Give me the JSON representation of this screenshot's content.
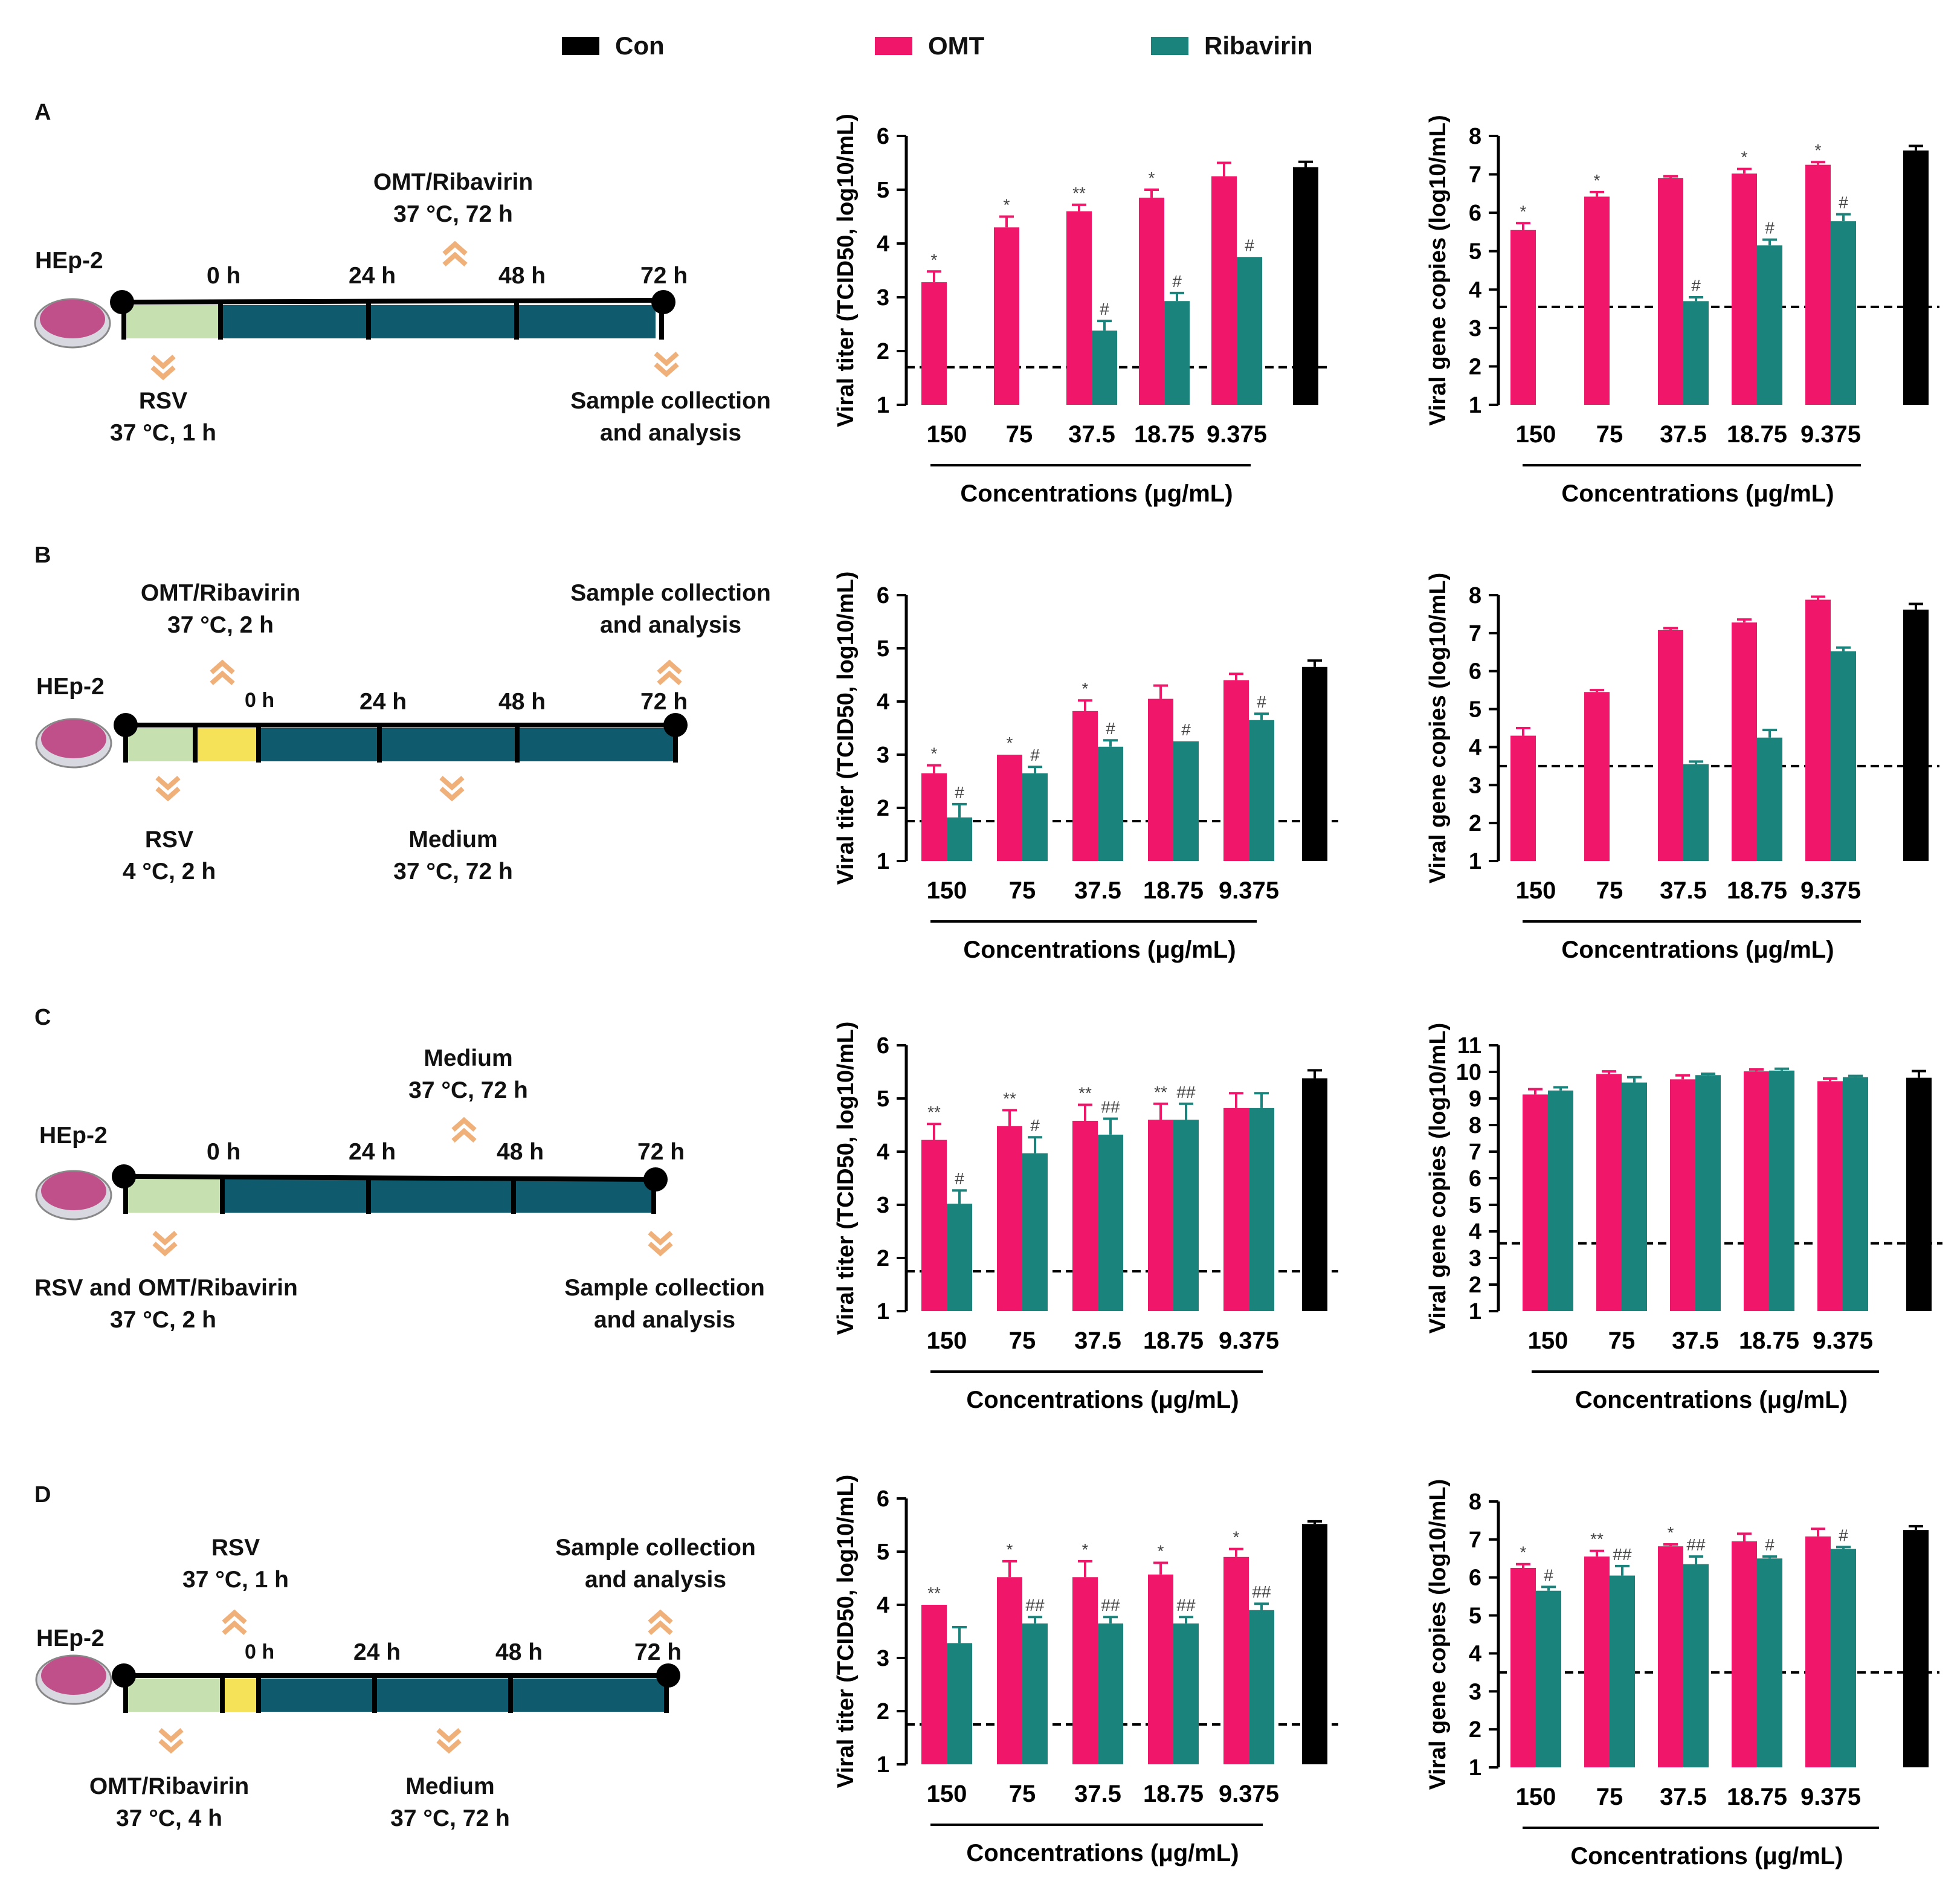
{
  "legend": {
    "items": [
      {
        "label": "Con",
        "color": "#000000"
      },
      {
        "label": "OMT",
        "color": "#f0166a"
      },
      {
        "label": "Ribavirin",
        "color": "#1a847c"
      }
    ]
  },
  "colors": {
    "con": "#000000",
    "omt": "#f0166a",
    "ribavirin": "#1a847c",
    "timeline": "#0f5b6d",
    "pre": "#c6e0b0",
    "yellow": "#f6e258",
    "arrow": "#f0b07a"
  },
  "panels": [
    {
      "letter": "A",
      "scheme": {
        "cell": "HEp-2",
        "hours": [
          "0 h",
          "24 h",
          "48 h",
          "72 h"
        ],
        "top_label_1": "OMT/Ribavirin",
        "top_label_2": "37 °C, 72 h",
        "bottom_left_1": "RSV",
        "bottom_left_2": "37 °C, 1 h",
        "bottom_right_1": "Sample collection",
        "bottom_right_2": "and analysis"
      }
    },
    {
      "letter": "B",
      "scheme": {
        "cell": "HEp-2",
        "hours": [
          "0 h",
          "24 h",
          "48 h",
          "72 h"
        ],
        "top_left_1": "OMT/Ribavirin",
        "top_left_2": "37 °C, 2 h",
        "top_right_1": "Sample collection",
        "top_right_2": "and analysis",
        "bottom_left_1": "RSV",
        "bottom_left_2": "4 °C, 2 h",
        "bottom_mid_1": "Medium",
        "bottom_mid_2": "37 °C, 72 h"
      }
    },
    {
      "letter": "C",
      "scheme": {
        "cell": "HEp-2",
        "hours": [
          "0 h",
          "24 h",
          "48 h",
          "72 h"
        ],
        "top_label_1": "Medium",
        "top_label_2": "37 °C, 72 h",
        "bottom_left_1": "RSV and OMT/Ribavirin",
        "bottom_left_2": "37 °C, 2 h",
        "bottom_right_1": "Sample collection",
        "bottom_right_2": "and analysis"
      }
    },
    {
      "letter": "D",
      "scheme": {
        "cell": "HEp-2",
        "hours": [
          "0 h",
          "24 h",
          "48 h",
          "72 h"
        ],
        "top_left_1": "RSV",
        "top_left_2": "37 °C, 1 h",
        "top_right_1": "Sample collection",
        "top_right_2": "and analysis",
        "bottom_left_1": "OMT/Ribavirin",
        "bottom_left_2": "37 °C, 4 h",
        "bottom_mid_1": "Medium",
        "bottom_mid_2": "37 °C, 72 h"
      }
    }
  ],
  "chart_data": [
    {
      "panel": "A",
      "type": "bar",
      "title": "",
      "ylabel": "Viral titer (TCID50, log10/mL)",
      "xlabel": "Concentrations (μg/mL)",
      "ylim": [
        1,
        6
      ],
      "yticks": [
        1,
        2,
        3,
        4,
        5,
        6
      ],
      "categories": [
        "150",
        "75",
        "37.5",
        "18.75",
        "9.375"
      ],
      "detection_limit": 1.7,
      "series": [
        {
          "name": "OMT",
          "values": [
            3.28,
            4.3,
            4.6,
            4.85,
            5.25
          ],
          "errors": [
            0.2,
            0.2,
            0.12,
            0.15,
            0.25
          ],
          "marks": [
            "*",
            "*",
            "**",
            "*",
            ""
          ]
        },
        {
          "name": "Ribavirin",
          "values": [
            null,
            null,
            2.38,
            2.93,
            3.75
          ],
          "errors": [
            0,
            0,
            0.18,
            0.15,
            0
          ],
          "marks": [
            "",
            "",
            "#",
            "#",
            "#"
          ]
        }
      ],
      "control": {
        "name": "Con",
        "value": 5.42,
        "error": 0.1
      }
    },
    {
      "panel": "A",
      "type": "bar",
      "title": "",
      "ylabel": "Viral gene copies (log10/mL)",
      "xlabel": "Concentrations (μg/mL)",
      "ylim": [
        1,
        8
      ],
      "yticks": [
        1,
        2,
        3,
        4,
        5,
        6,
        7,
        8
      ],
      "categories": [
        "150",
        "75",
        "37.5",
        "18.75",
        "9.375"
      ],
      "detection_limit": 3.55,
      "series": [
        {
          "name": "OMT",
          "values": [
            5.55,
            6.42,
            6.9,
            7.02,
            7.25
          ],
          "errors": [
            0.18,
            0.12,
            0.05,
            0.12,
            0.07
          ],
          "marks": [
            "*",
            "*",
            "",
            "*",
            "*"
          ]
        },
        {
          "name": "Ribavirin",
          "values": [
            null,
            null,
            3.7,
            5.15,
            5.78
          ],
          "errors": [
            0,
            0,
            0.1,
            0.15,
            0.18
          ],
          "marks": [
            "",
            "",
            "#",
            "#",
            "#"
          ]
        }
      ],
      "control": {
        "name": "Con",
        "value": 7.62,
        "error": 0.12
      }
    },
    {
      "panel": "B",
      "type": "bar",
      "title": "",
      "ylabel": "Viral titer (TCID50, log10/mL)",
      "xlabel": "Concentrations (μg/mL)",
      "ylim": [
        1,
        6
      ],
      "yticks": [
        1,
        2,
        3,
        4,
        5,
        6
      ],
      "categories": [
        "150",
        "75",
        "37.5",
        "18.75",
        "9.375"
      ],
      "detection_limit": 1.75,
      "series": [
        {
          "name": "OMT",
          "values": [
            2.65,
            3.0,
            3.82,
            4.05,
            4.4
          ],
          "errors": [
            0.15,
            0.0,
            0.2,
            0.25,
            0.12
          ],
          "marks": [
            "*",
            "*",
            "*",
            "",
            ""
          ]
        },
        {
          "name": "Ribavirin",
          "values": [
            1.82,
            2.65,
            3.15,
            3.25,
            3.65
          ],
          "errors": [
            0.25,
            0.12,
            0.12,
            0.0,
            0.12
          ],
          "marks": [
            "#",
            "#",
            "#",
            "#",
            "#"
          ]
        }
      ],
      "control": {
        "name": "Con",
        "value": 4.65,
        "error": 0.12
      }
    },
    {
      "panel": "B",
      "type": "bar",
      "title": "",
      "ylabel": "Viral gene copies (log10/mL)",
      "xlabel": "Concentrations (μg/mL)",
      "ylim": [
        1,
        8
      ],
      "yticks": [
        1,
        2,
        3,
        4,
        5,
        6,
        7,
        8
      ],
      "categories": [
        "150",
        "75",
        "37.5",
        "18.75",
        "9.375"
      ],
      "detection_limit": 3.5,
      "series": [
        {
          "name": "OMT",
          "values": [
            4.3,
            5.45,
            7.08,
            7.28,
            7.88
          ],
          "errors": [
            0.2,
            0.05,
            0.05,
            0.08,
            0.08
          ],
          "marks": [
            "",
            "",
            "",
            "",
            ""
          ]
        },
        {
          "name": "Ribavirin",
          "values": [
            null,
            null,
            3.55,
            4.25,
            6.52
          ],
          "errors": [
            0,
            0,
            0.07,
            0.2,
            0.1
          ],
          "marks": [
            "",
            "",
            "",
            "",
            ""
          ]
        }
      ],
      "control": {
        "name": "Con",
        "value": 7.62,
        "error": 0.15
      }
    },
    {
      "panel": "C",
      "type": "bar",
      "title": "",
      "ylabel": "Viral titer (TCID50, log10/mL)",
      "xlabel": "Concentrations (μg/mL)",
      "ylim": [
        1,
        6
      ],
      "yticks": [
        1,
        2,
        3,
        4,
        5,
        6
      ],
      "categories": [
        "150",
        "75",
        "37.5",
        "18.75",
        "9.375"
      ],
      "detection_limit": 1.75,
      "series": [
        {
          "name": "OMT",
          "values": [
            4.22,
            4.48,
            4.58,
            4.6,
            4.82
          ],
          "errors": [
            0.3,
            0.3,
            0.3,
            0.3,
            0.28
          ],
          "marks": [
            "**",
            "**",
            "**",
            "**",
            ""
          ]
        },
        {
          "name": "Ribavirin",
          "values": [
            3.02,
            3.97,
            4.32,
            4.6,
            4.82
          ],
          "errors": [
            0.25,
            0.3,
            0.3,
            0.3,
            0.28
          ],
          "marks": [
            "#",
            "#",
            "##",
            "##",
            ""
          ]
        }
      ],
      "control": {
        "name": "Con",
        "value": 5.38,
        "error": 0.15
      }
    },
    {
      "panel": "C",
      "type": "bar",
      "title": "",
      "ylabel": "Viral gene copies (log10/mL)",
      "xlabel": "Concentrations (μg/mL)",
      "ylim": [
        1,
        11
      ],
      "yticks": [
        1,
        2,
        3,
        4,
        5,
        6,
        7,
        8,
        9,
        10,
        11
      ],
      "categories": [
        "150",
        "75",
        "37.5",
        "18.75",
        "9.375"
      ],
      "detection_limit": 3.55,
      "series": [
        {
          "name": "OMT",
          "values": [
            9.15,
            9.92,
            9.72,
            10.02,
            9.65
          ],
          "errors": [
            0.2,
            0.1,
            0.15,
            0.07,
            0.1
          ],
          "marks": [
            "",
            "",
            "",
            "",
            ""
          ]
        },
        {
          "name": "Ribavirin",
          "values": [
            9.3,
            9.6,
            9.88,
            10.05,
            9.8
          ],
          "errors": [
            0.12,
            0.2,
            0.05,
            0.07,
            0.05
          ],
          "marks": [
            "",
            "",
            "",
            "",
            ""
          ]
        }
      ],
      "control": {
        "name": "Con",
        "value": 9.78,
        "error": 0.25
      }
    },
    {
      "panel": "D",
      "type": "bar",
      "title": "",
      "ylabel": "Viral titer (TCID50, log10/mL)",
      "xlabel": "Concentrations (μg/mL)",
      "ylim": [
        1,
        6
      ],
      "yticks": [
        1,
        2,
        3,
        4,
        5,
        6
      ],
      "categories": [
        "150",
        "75",
        "37.5",
        "18.75",
        "9.375"
      ],
      "detection_limit": 1.75,
      "series": [
        {
          "name": "OMT",
          "values": [
            4.0,
            4.52,
            4.52,
            4.57,
            4.9
          ],
          "errors": [
            0.0,
            0.3,
            0.3,
            0.22,
            0.15
          ],
          "marks": [
            "**",
            "*",
            "*",
            "*",
            "*"
          ]
        },
        {
          "name": "Ribavirin",
          "values": [
            3.28,
            3.65,
            3.65,
            3.65,
            3.9
          ],
          "errors": [
            0.3,
            0.12,
            0.12,
            0.12,
            0.12
          ],
          "marks": [
            "",
            "##",
            "##",
            "##",
            "##"
          ]
        }
      ],
      "control": {
        "name": "Con",
        "value": 5.52,
        "error": 0.05
      }
    },
    {
      "panel": "D",
      "type": "bar",
      "title": "",
      "ylabel": "Viral gene copies (log10/mL)",
      "xlabel": "Concentrations (μg/mL)",
      "ylim": [
        1,
        8
      ],
      "yticks": [
        1,
        2,
        3,
        4,
        5,
        6,
        7,
        8
      ],
      "categories": [
        "150",
        "75",
        "37.5",
        "18.75",
        "9.375"
      ],
      "detection_limit": 3.5,
      "series": [
        {
          "name": "OMT",
          "values": [
            6.25,
            6.55,
            6.82,
            6.95,
            7.08
          ],
          "errors": [
            0.1,
            0.15,
            0.05,
            0.2,
            0.2
          ],
          "marks": [
            "*",
            "**",
            "*",
            "",
            ""
          ]
        },
        {
          "name": "Ribavirin",
          "values": [
            5.65,
            6.05,
            6.35,
            6.5,
            6.75
          ],
          "errors": [
            0.1,
            0.25,
            0.2,
            0.05,
            0.05
          ],
          "marks": [
            "#",
            "##",
            "##",
            "#",
            "#"
          ]
        }
      ],
      "control": {
        "name": "Con",
        "value": 7.25,
        "error": 0.1
      }
    }
  ]
}
